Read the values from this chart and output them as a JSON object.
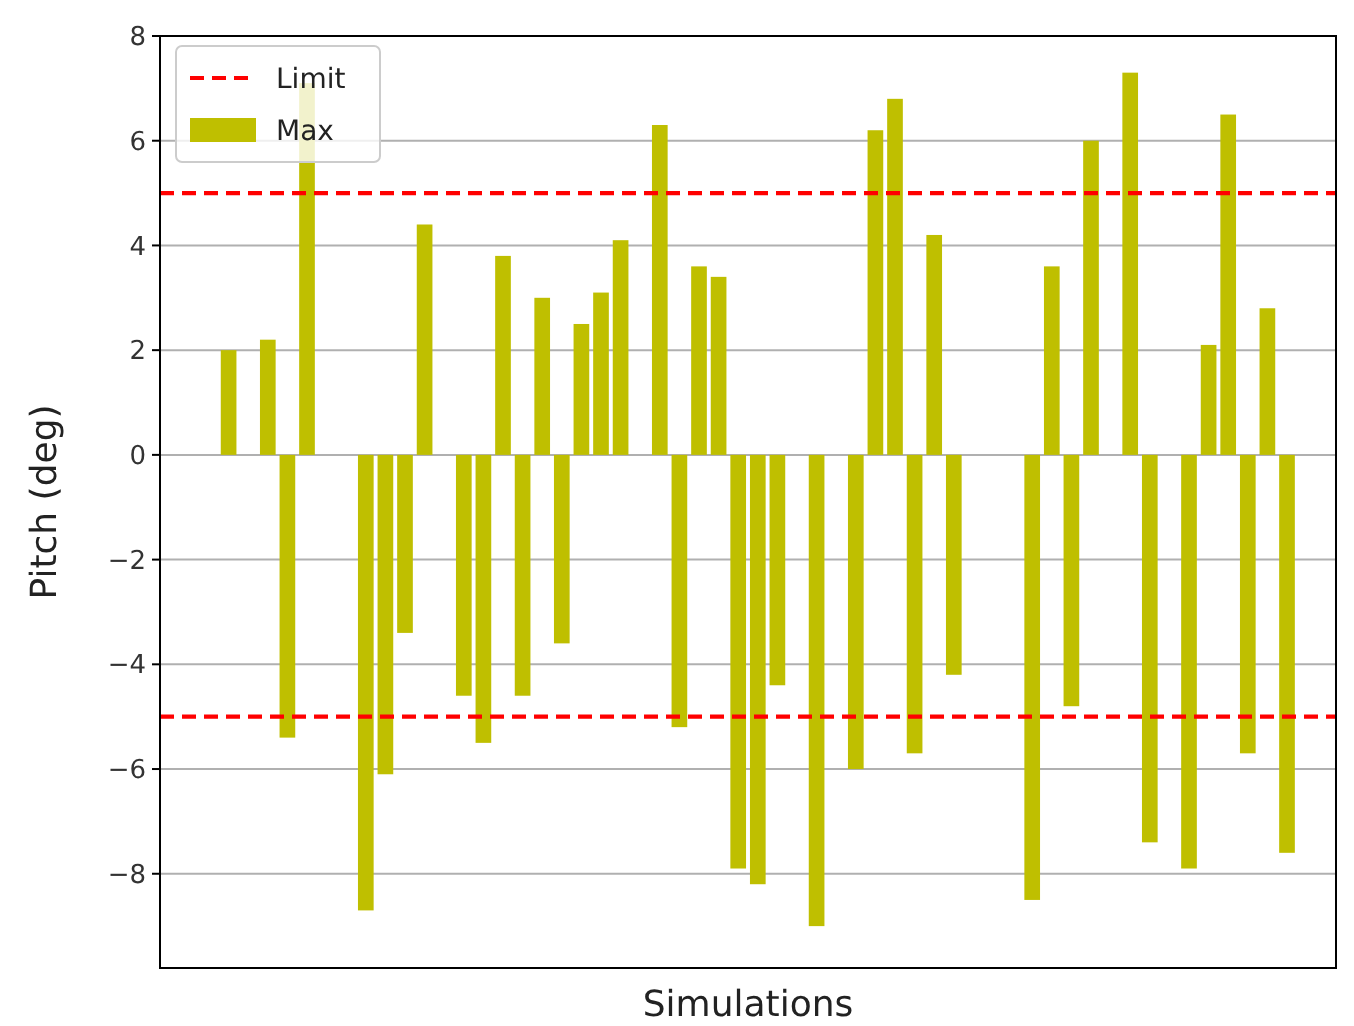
{
  "chart_data": {
    "type": "bar",
    "xlabel": "Simulations",
    "ylabel": "Pitch (deg)",
    "categories": [
      null,
      null,
      null,
      null,
      null,
      null,
      null,
      null,
      null,
      null,
      null,
      null,
      null,
      null,
      null,
      null,
      null,
      null,
      null,
      null,
      null,
      null,
      null,
      null,
      null,
      null,
      null,
      null,
      null,
      null,
      null,
      null,
      null,
      null,
      null,
      null,
      null,
      null,
      null,
      null,
      null,
      null,
      null,
      null,
      null,
      null,
      null,
      null,
      null,
      null,
      null,
      null,
      null,
      null,
      null,
      null,
      null,
      null,
      null,
      null
    ],
    "series": [
      {
        "name": "Max",
        "color": "#bfbf00",
        "values": [
          null,
          null,
          null,
          2.0,
          null,
          2.2,
          -5.4,
          7.1,
          null,
          null,
          -8.7,
          -6.1,
          -3.4,
          4.4,
          null,
          -4.6,
          -5.5,
          3.8,
          -4.6,
          3.0,
          -3.6,
          2.5,
          3.1,
          4.1,
          null,
          6.3,
          -5.2,
          3.6,
          3.4,
          -7.9,
          -8.2,
          -4.4,
          null,
          -9.0,
          null,
          -6.0,
          6.2,
          6.8,
          -5.7,
          4.2,
          -4.2,
          null,
          null,
          null,
          -8.5,
          3.6,
          -4.8,
          6.0,
          null,
          7.3,
          -7.4,
          null,
          -7.9,
          2.1,
          6.5,
          -5.7,
          2.8,
          -7.6,
          null,
          null
        ]
      }
    ],
    "ylim": [
      -9.8,
      8
    ],
    "yticks": [
      {
        "value": -8,
        "label": "−8"
      },
      {
        "value": -6,
        "label": "−6"
      },
      {
        "value": -4,
        "label": "−4"
      },
      {
        "value": -2,
        "label": "−2"
      },
      0,
      2,
      4,
      6,
      8
    ],
    "grid": "y",
    "legend": "top left",
    "ref_lines": [
      {
        "axis": "y",
        "value": 5,
        "label": "Limit",
        "color": "#ff0000",
        "line_style": "dashed"
      },
      {
        "axis": "y",
        "value": -5,
        "color": "#ff0000",
        "line_style": "dashed"
      }
    ]
  }
}
